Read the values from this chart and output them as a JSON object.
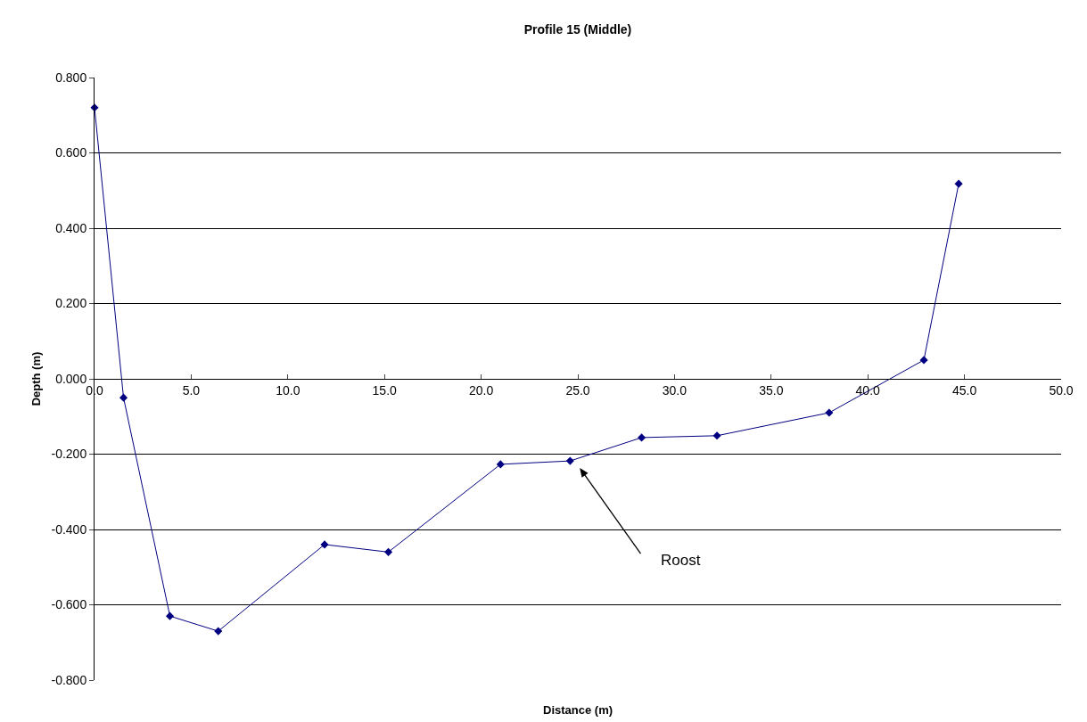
{
  "chart_data": {
    "type": "line",
    "title": "Profile 15 (Middle)",
    "xlabel": "Distance (m)",
    "ylabel": "Depth (m)",
    "x": [
      0,
      1.5,
      3.9,
      6.4,
      11.9,
      15.2,
      21.0,
      24.6,
      28.3,
      32.2,
      38.0,
      42.9,
      44.7
    ],
    "series": [
      {
        "color": "#000080",
        "values": [
          0.72,
          -0.05,
          -0.63,
          -0.67,
          -0.44,
          -0.46,
          -0.227,
          -0.218,
          -0.156,
          -0.151,
          -0.09,
          0.05,
          0.518
        ]
      }
    ],
    "xlim": [
      0,
      50
    ],
    "ylim": [
      -0.8,
      0.8
    ],
    "xticks": [
      {
        "value": 0,
        "label": "0.0"
      },
      {
        "value": 5,
        "label": "5.0"
      },
      {
        "value": 10,
        "label": "10.0"
      },
      {
        "value": 15,
        "label": "15.0"
      },
      {
        "value": 20,
        "label": "20.0"
      },
      {
        "value": 25,
        "label": "25.0"
      },
      {
        "value": 30,
        "label": "30.0"
      },
      {
        "value": 35,
        "label": "35.0"
      },
      {
        "value": 40,
        "label": "40.0"
      },
      {
        "value": 45,
        "label": "45.0"
      },
      {
        "value": 50,
        "label": "50.0"
      }
    ],
    "yticks": [
      {
        "value": -0.8,
        "label": "-0.800"
      },
      {
        "value": -0.6,
        "label": "-0.600"
      },
      {
        "value": -0.4,
        "label": "-0.400"
      },
      {
        "value": -0.2,
        "label": "-0.200"
      },
      {
        "value": 0,
        "label": "0.000"
      },
      {
        "value": 0.2,
        "label": "0.200"
      },
      {
        "value": 0.4,
        "label": "0.400"
      },
      {
        "value": 0.6,
        "label": "0.600"
      },
      {
        "value": 0.8,
        "label": "0.800"
      }
    ],
    "annotations": [
      "Roost"
    ],
    "grid": "y",
    "marker": "diamond",
    "line_style": "solid"
  }
}
